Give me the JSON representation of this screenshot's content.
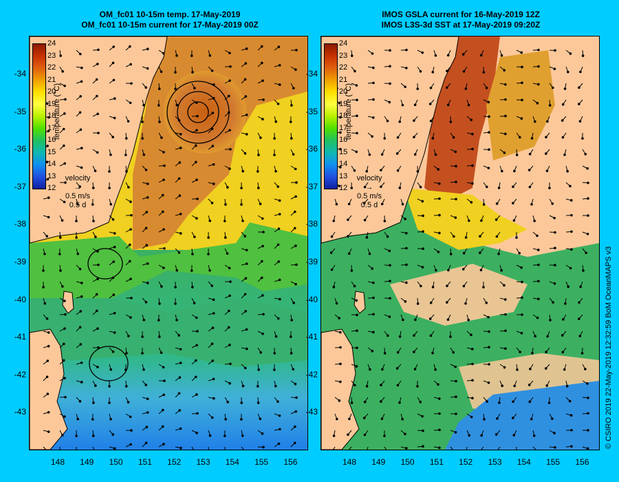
{
  "left_panel": {
    "title_line1": "OM_fc01 10-15m temp. 17-May-2019",
    "title_line2": "OM_fc01 10-15m current for 17-May-2019 00Z"
  },
  "right_panel": {
    "title_line1": "IMOS GSLA current for 16-May-2019 12Z",
    "title_line2": "IMOS L3S-3d SST at 17-May-2019 09:20Z"
  },
  "colorbar": {
    "title": "temperature (°C)",
    "ticks": [
      "24",
      "23",
      "22",
      "21",
      "20",
      "19",
      "18",
      "17",
      "16",
      "15",
      "14",
      "13",
      "12"
    ],
    "colors": [
      "#8b1a00",
      "#c83200",
      "#e06010",
      "#f0a000",
      "#ffe000",
      "#ffff40",
      "#b8f000",
      "#50e000",
      "#20c060",
      "#10b8b0",
      "#1090f0",
      "#2050e0",
      "#1020a0"
    ]
  },
  "velocity_key": {
    "label": "velocity",
    "speed": "0.5 m/s",
    "duration": "0.5 d"
  },
  "latitude_labels": [
    "-34",
    "-35",
    "-36",
    "-37",
    "-38",
    "-39",
    "-40",
    "-41",
    "-42",
    "-43"
  ],
  "longitude_labels": [
    "148",
    "149",
    "150",
    "151",
    "152",
    "153",
    "154",
    "155",
    "156"
  ],
  "credit": "© CSIRO 2019   22-May-2019 12:32:59 BoM OceanMAPS v3",
  "colors": {
    "background": "#00ccff",
    "land": "#fcc89a",
    "warm": "#d27a30",
    "mid": "#f0d020",
    "cool": "#3cb060",
    "cold": "#3090e0"
  }
}
